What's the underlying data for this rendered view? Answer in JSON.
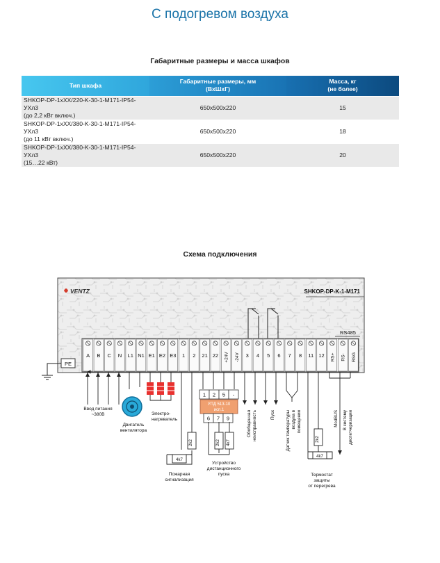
{
  "page": {
    "title": "С подогревом воздуха"
  },
  "table": {
    "title": "Габаритные размеры и масса шкафов",
    "headers": {
      "type": "Тип шкафа",
      "dims_line1": "Габаритные размеры, мм",
      "dims_line2": "(ВхШхГ)",
      "mass_line1": "Масса, кг",
      "mass_line2": "(не более)"
    },
    "rows": [
      {
        "type_line1": "SHKOP-DP-1xXX/220-K-30-1-M171-IP54-УХл3",
        "type_line2": "(до 2,2 кВт включ.)",
        "dims": "650x500x220",
        "mass": "15"
      },
      {
        "type_line1": "SHKOP-DP-1xXX/380-K-30-1-M171-IP54-УХл3",
        "type_line2": "(до 11 кВт включ.)",
        "dims": "650x500x220",
        "mass": "18"
      },
      {
        "type_line1": "SHKOP-DP-1xXX/380-K-30-1-M171-IP54-УХл3",
        "type_line2": "(15…22 кВт)",
        "dims": "650x500x220",
        "mass": "20"
      }
    ]
  },
  "diagram": {
    "title": "Схема подключения",
    "logo": "VENTZ",
    "model": "SHKOP-DP-K-1-M171",
    "rs485": "RS485",
    "pe": "PE",
    "terminals": [
      "A",
      "B",
      "C",
      "N",
      "L1",
      "N1",
      "E1",
      "E2",
      "E3",
      "1",
      "2",
      "21",
      "22",
      "+24V",
      "-24V",
      "3",
      "4",
      "5",
      "6",
      "7",
      "8",
      "11",
      "12",
      "RS+",
      "RS-",
      "RSG"
    ],
    "upd_top": [
      "1",
      "2",
      "5",
      "-"
    ],
    "upd_label_line1": "УПД 513-10",
    "upd_label_line2": "исп.1",
    "upd_bottom": [
      "6",
      "7",
      "9"
    ],
    "resistor_2k2": "2k2",
    "resistor_4k7": "4k7",
    "modbus": "ModBUS",
    "labels": {
      "power_line1": "Ввод питания",
      "power_line2": "~380В",
      "fan_line1": "Двигатель",
      "fan_line2": "вентилятора",
      "heater_line1": "Электро-",
      "heater_line2": "нагреватель",
      "fire_line1": "Пожарная",
      "fire_line2": "сигнализация",
      "remote_line1": "Устройство",
      "remote_line2": "дистанционного",
      "remote_line3": "пуска",
      "generic_fault_line1": "Обобщенная",
      "generic_fault_line2": "неисправность",
      "start": "Пуск",
      "temp_sensor_line1": "Датчик температуры",
      "temp_sensor_line2": "воздуха в",
      "temp_sensor_line3": "помещении",
      "dispatch_line1": "В систему",
      "dispatch_line2": "диспетчеризации",
      "thermostat_line1": "Термостат",
      "thermostat_line2": "защиты",
      "thermostat_line3": "от перегрева"
    }
  },
  "colors": {
    "accent": "#1a73a8",
    "heater": "#e8312f",
    "upd": "#f0a070",
    "motor": "#29a9d8"
  }
}
